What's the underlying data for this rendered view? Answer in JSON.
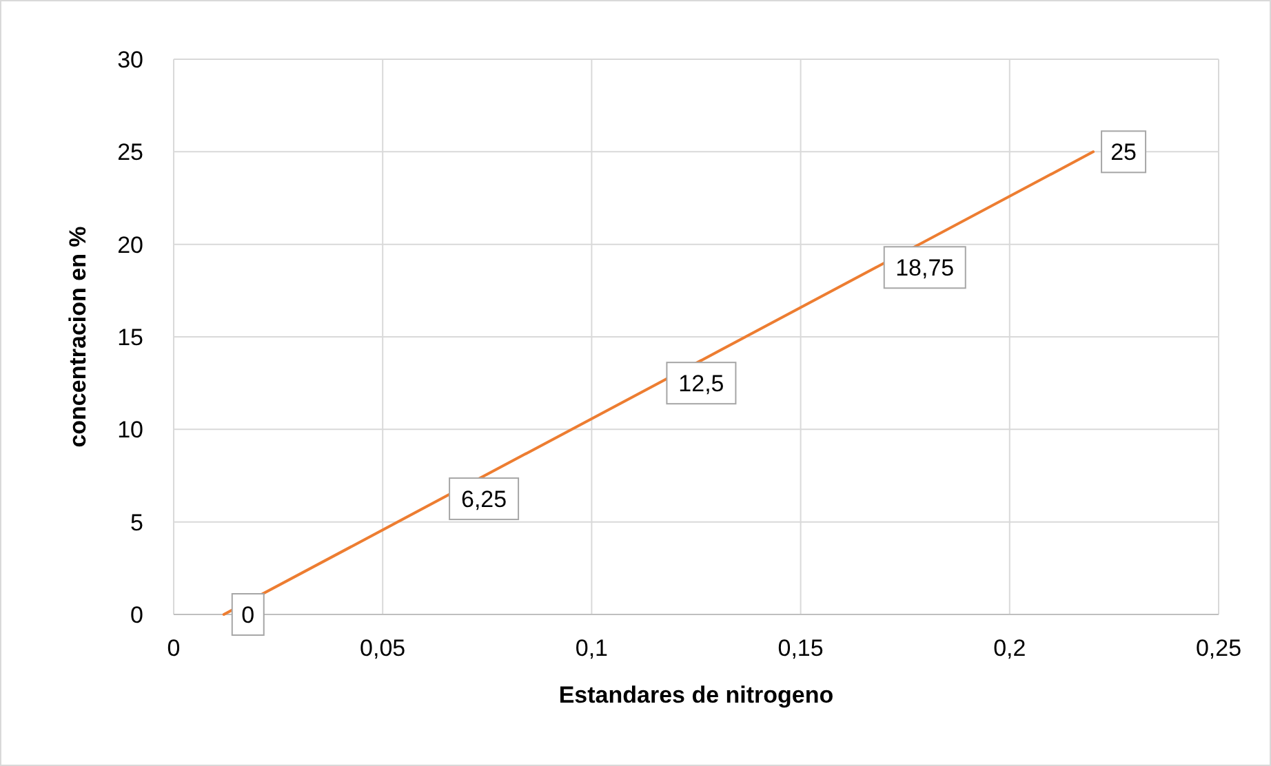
{
  "chart_data": {
    "type": "line",
    "xlabel": "Estandares de nitrogeno",
    "ylabel": "concentracion en %",
    "x": [
      0.012,
      0.064,
      0.116,
      0.168,
      0.22
    ],
    "series": [
      {
        "color": "#ed7d31",
        "values": [
          0,
          6.25,
          12.5,
          18.75,
          25
        ],
        "value_labels": [
          "0",
          "6,25",
          "12,5",
          "18,75",
          "25"
        ]
      }
    ],
    "xlim": [
      0,
      0.25
    ],
    "xticks": [
      {
        "value": 0,
        "label": "0"
      },
      {
        "value": 0.05,
        "label": "0,05"
      },
      {
        "value": 0.1,
        "label": "0,1"
      },
      {
        "value": 0.15,
        "label": "0,15"
      },
      {
        "value": 0.2,
        "label": "0,2"
      },
      {
        "value": 0.25,
        "label": "0,25"
      }
    ],
    "ylim": [
      0,
      30
    ],
    "yticks": [
      0,
      5,
      10,
      15,
      20,
      25,
      30
    ],
    "grid": true,
    "marker": "none",
    "line_style": "solid"
  }
}
